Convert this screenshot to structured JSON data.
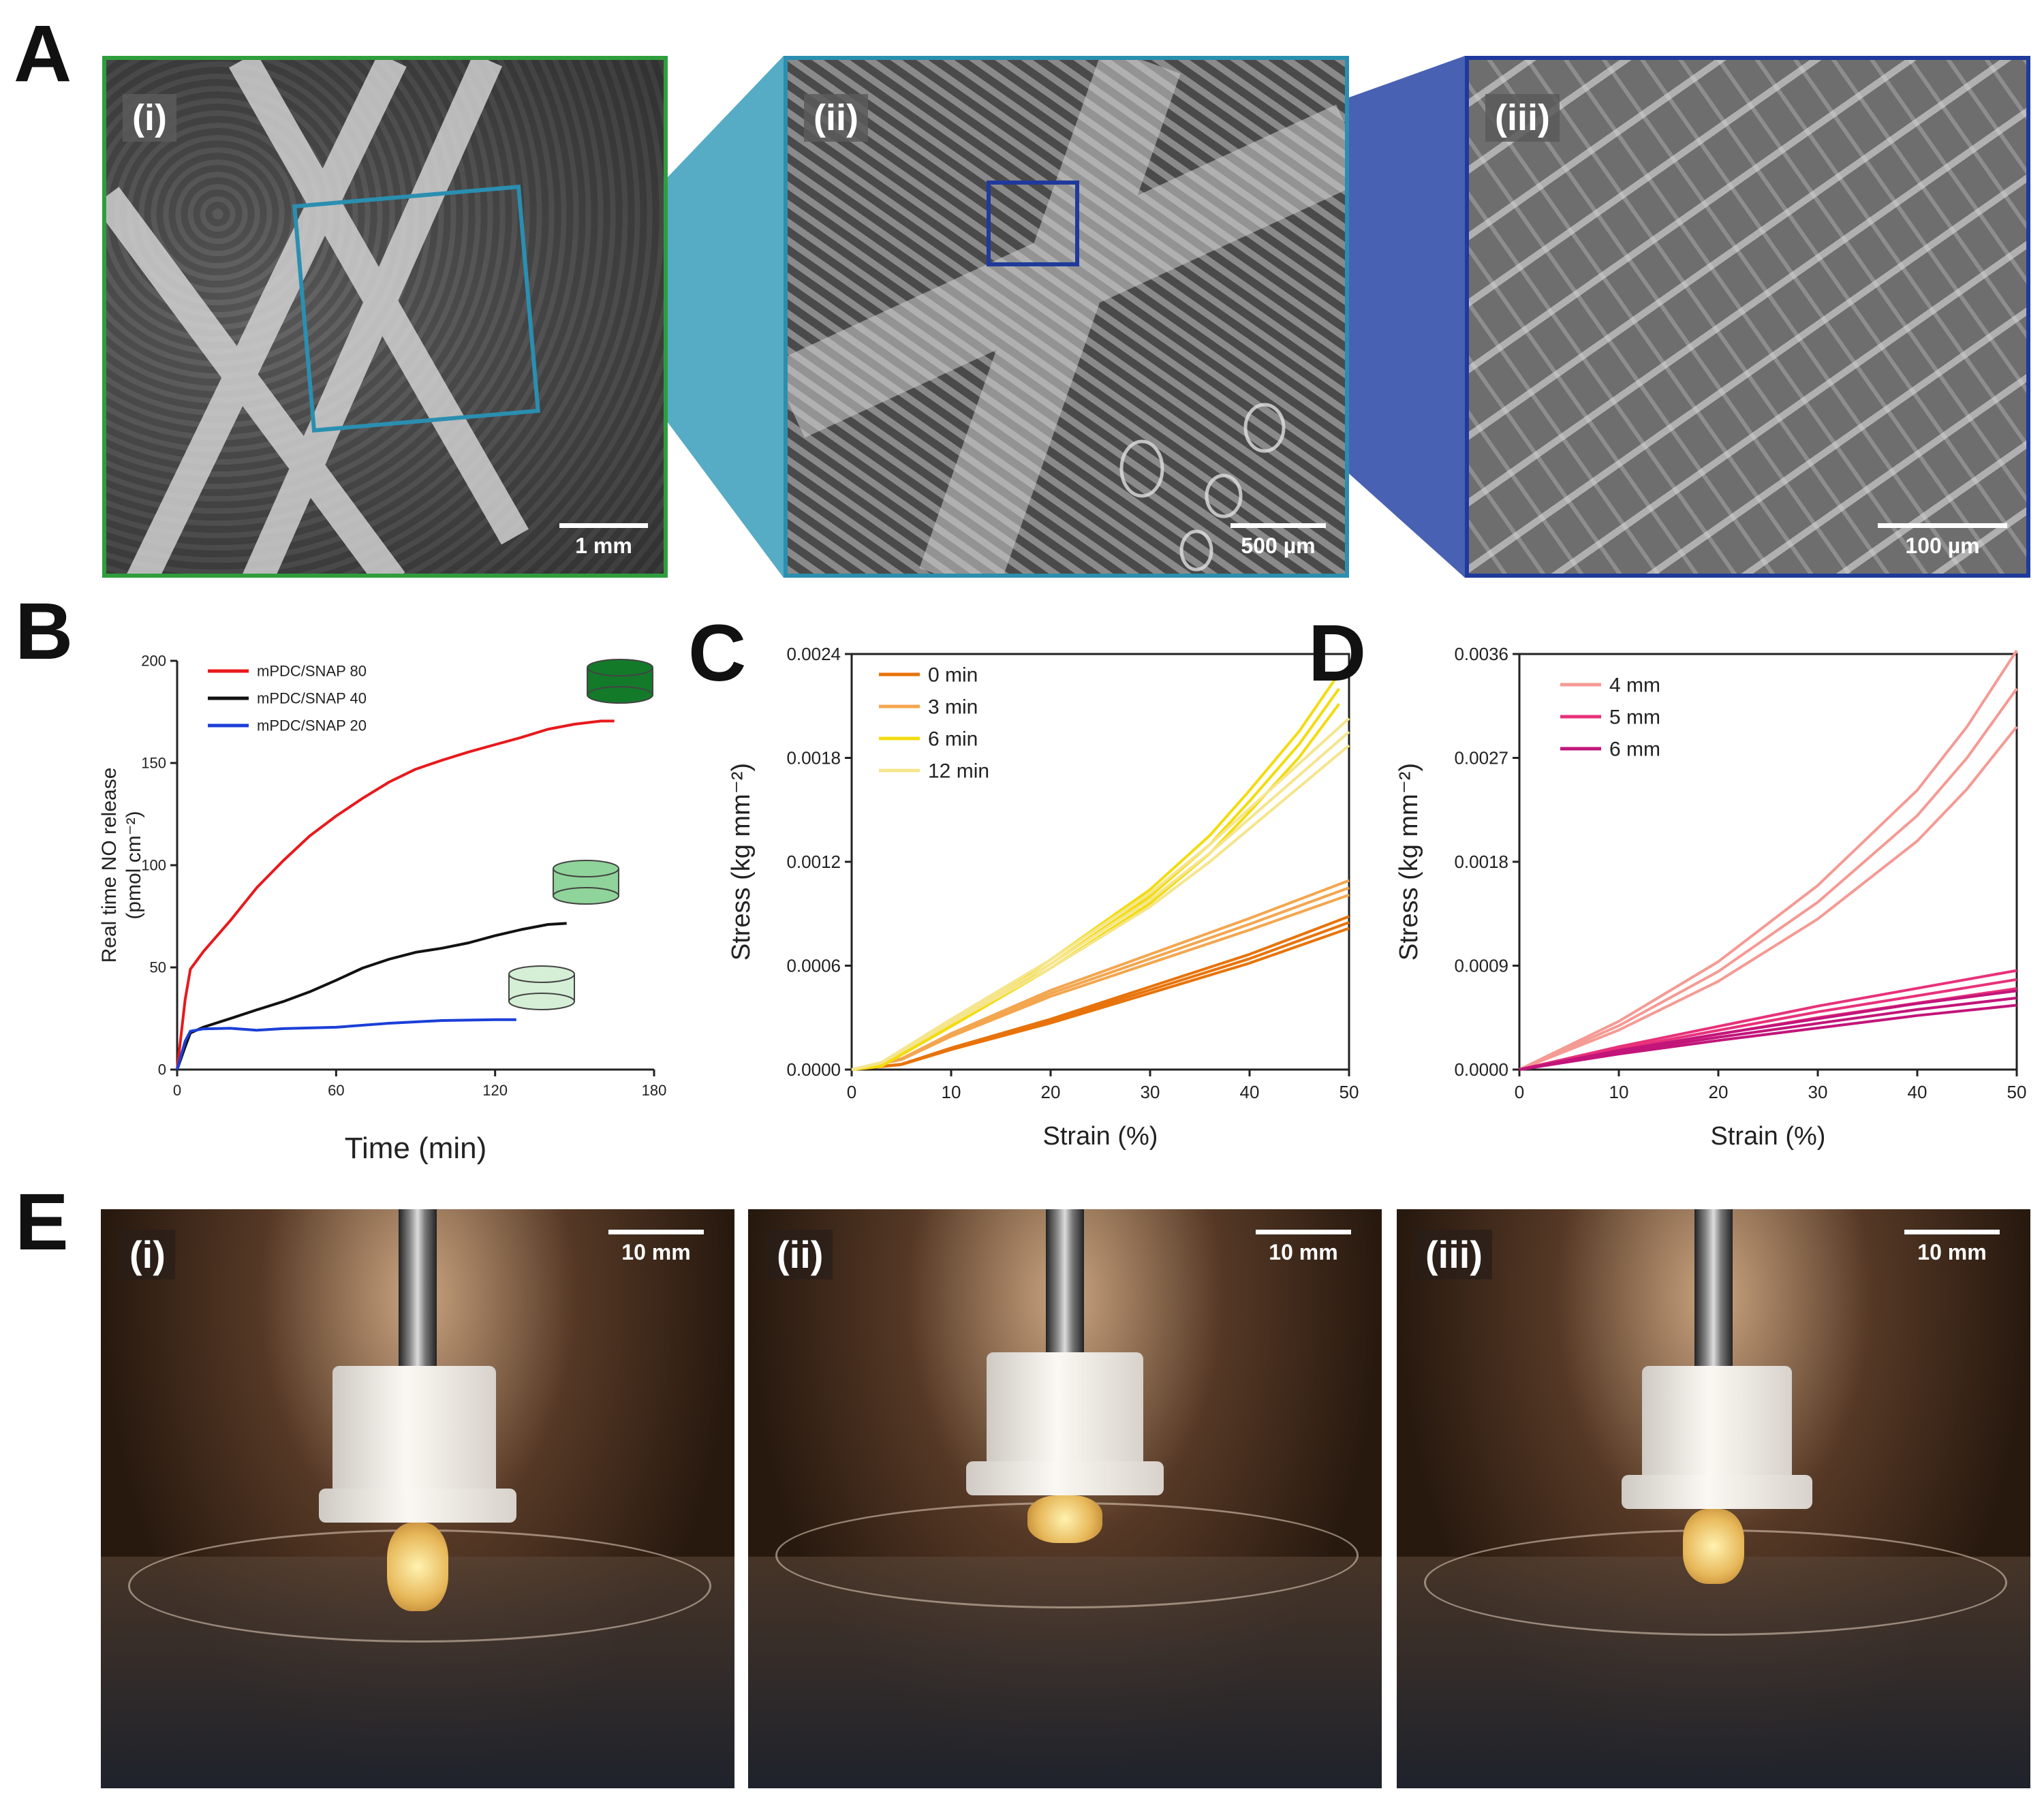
{
  "panels": {
    "A": {
      "letter": "A",
      "sub": [
        {
          "label": "(i)",
          "scale": "1 mm",
          "border": "#2e9e3c"
        },
        {
          "label": "(ii)",
          "scale": "500 µm",
          "border": "#2a8fb0"
        },
        {
          "label": "(iii)",
          "scale": "100 µm",
          "border": "#1f3a9c"
        }
      ]
    },
    "B": {
      "letter": "B"
    },
    "C": {
      "letter": "C"
    },
    "D": {
      "letter": "D"
    },
    "E": {
      "letter": "E",
      "sub": [
        {
          "label": "(i)",
          "scale": "10 mm"
        },
        {
          "label": "(ii)",
          "scale": "10 mm"
        },
        {
          "label": "(iii)",
          "scale": "10 mm"
        }
      ]
    }
  },
  "colors": {
    "red": "#e8191c",
    "black": "#111111",
    "blue": "#1a3fd8",
    "c0": "#e8730a",
    "c3": "#f3a64f",
    "c6": "#f2dc10",
    "c12": "#f5e58c",
    "d4": "#f59a94",
    "d5": "#e8317a",
    "d6": "#c2157a",
    "disk_dark": "#137a2a",
    "disk_mid": "#8fd49a",
    "disk_light": "#d4efd6"
  },
  "chart_data": [
    {
      "panel": "B",
      "type": "line",
      "xlabel": "Time (min)",
      "ylabel_line1": "Real time NO release",
      "ylabel_line2": "(pmol cm⁻²)",
      "xlim": [
        0,
        180
      ],
      "ylim": [
        0,
        200
      ],
      "xticks": [
        "0",
        "60",
        "120",
        "180"
      ],
      "yticks": [
        "0",
        "50",
        "100",
        "150",
        "200"
      ],
      "series": [
        {
          "name": "mPDC/SNAP 80",
          "color": "#e8191c",
          "x": [
            0,
            3,
            5,
            10,
            20,
            30,
            40,
            50,
            60,
            70,
            80,
            90,
            100,
            110,
            120,
            130,
            140,
            150,
            160,
            165
          ],
          "y": [
            0,
            35,
            50,
            58,
            72,
            88,
            102,
            115,
            125,
            133,
            140,
            146,
            151,
            156,
            160,
            163,
            166,
            168,
            170,
            171
          ]
        },
        {
          "name": "mPDC/SNAP 40",
          "color": "#111111",
          "x": [
            0,
            3,
            5,
            10,
            20,
            30,
            40,
            50,
            60,
            70,
            80,
            90,
            100,
            110,
            120,
            130,
            140,
            147
          ],
          "y": [
            0,
            12,
            18,
            20,
            24,
            29,
            34,
            39,
            44,
            49,
            53,
            57,
            60,
            63,
            66,
            68,
            70,
            71
          ]
        },
        {
          "name": "mPDC/SNAP 20",
          "color": "#1a3fd8",
          "x": [
            0,
            3,
            5,
            10,
            20,
            30,
            40,
            60,
            80,
            100,
            120,
            128
          ],
          "y": [
            0,
            14,
            18,
            19,
            20,
            20,
            21,
            21,
            22,
            23,
            24,
            25
          ]
        }
      ]
    },
    {
      "panel": "C",
      "type": "line",
      "xlabel": "Strain (%)",
      "ylabel": "Stress (kg mm⁻²)",
      "xlim": [
        0,
        50
      ],
      "ylim": [
        0,
        0.0024
      ],
      "xticks": [
        "0",
        "10",
        "20",
        "30",
        "40",
        "50"
      ],
      "yticks": [
        "0.0000",
        "0.0006",
        "0.0012",
        "0.0018",
        "0.0024"
      ],
      "series": [
        {
          "name": "0 min",
          "color": "#e8730a",
          "x": [
            0,
            5,
            10,
            20,
            30,
            40,
            50
          ],
          "y": [
            0,
            3e-05,
            0.00012,
            0.00028,
            0.00046,
            0.00064,
            0.00085
          ]
        },
        {
          "name": "3 min",
          "color": "#f3a64f",
          "x": [
            0,
            5,
            10,
            20,
            30,
            40,
            50
          ],
          "y": [
            0,
            6e-05,
            0.0002,
            0.00044,
            0.00064,
            0.00084,
            0.00105
          ]
        },
        {
          "name": "6 min",
          "color": "#f2dc10",
          "x": [
            0,
            3,
            10,
            20,
            30,
            36,
            40,
            45,
            49
          ],
          "y": [
            0,
            2e-05,
            0.00026,
            0.00061,
            0.001,
            0.0013,
            0.00155,
            0.00188,
            0.0022
          ]
        },
        {
          "name": "12 min",
          "color": "#f5e58c",
          "x": [
            0,
            3,
            10,
            20,
            30,
            36,
            40,
            45,
            50
          ],
          "y": [
            0,
            4e-05,
            0.00028,
            0.00061,
            0.00098,
            0.00125,
            0.00145,
            0.0017,
            0.00195
          ]
        }
      ]
    },
    {
      "panel": "D",
      "type": "line",
      "xlabel": "Strain (%)",
      "ylabel": "Stress (kg mm⁻²)",
      "xlim": [
        0,
        50
      ],
      "ylim": [
        0,
        0.0036
      ],
      "xticks": [
        "0",
        "10",
        "20",
        "30",
        "40",
        "50"
      ],
      "yticks": [
        "0.0000",
        "0.0009",
        "0.0018",
        "0.0027",
        "0.0036"
      ],
      "series": [
        {
          "name": "4 mm",
          "color": "#f59a94",
          "x": [
            0,
            10,
            20,
            30,
            40,
            45,
            50
          ],
          "y": [
            0,
            0.00038,
            0.00085,
            0.00145,
            0.0022,
            0.0027,
            0.0033
          ]
        },
        {
          "name": "5 mm",
          "color": "#e8317a",
          "x": [
            0,
            10,
            20,
            30,
            40,
            50
          ],
          "y": [
            0,
            0.00018,
            0.00034,
            0.0005,
            0.00064,
            0.00078
          ]
        },
        {
          "name": "6 mm",
          "color": "#c2157a",
          "x": [
            0,
            10,
            20,
            30,
            40,
            50
          ],
          "y": [
            0,
            0.00015,
            0.00028,
            0.0004,
            0.00052,
            0.00062
          ]
        }
      ]
    }
  ]
}
